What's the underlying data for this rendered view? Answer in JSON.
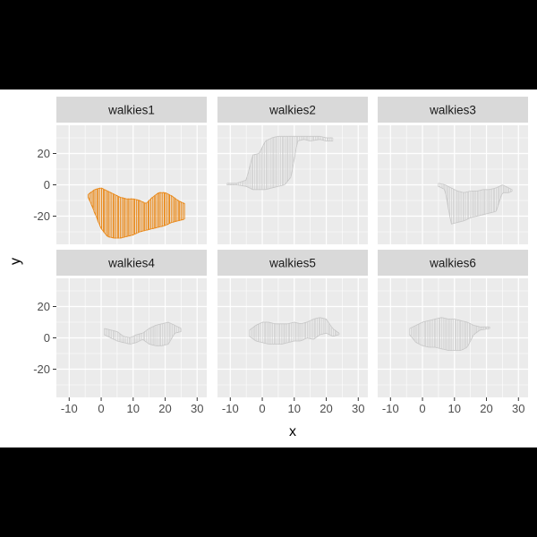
{
  "chart_data": {
    "type": "line",
    "xlabel": "x",
    "ylabel": "y",
    "xlim": [
      -14,
      33
    ],
    "ylim": [
      -38,
      38
    ],
    "x_breaks": [
      -10,
      0,
      10,
      20,
      30
    ],
    "y_breaks": [
      -20,
      0,
      20
    ],
    "grid": true,
    "highlight_color": "#E98B1E",
    "muted_color": "#C8C8C8",
    "panel_background": "#EBEBEB",
    "strip_background": "#D9D9D9",
    "panels": [
      {
        "name": "walkies1",
        "highlighted": true,
        "band": {
          "x": [
            -4,
            -2,
            0,
            2,
            4,
            6,
            8,
            10,
            12,
            14,
            16,
            18,
            20,
            22,
            24,
            26
          ],
          "y_low": [
            -8,
            -18,
            -28,
            -33,
            -34,
            -34,
            -33,
            -32,
            -30,
            -29,
            -28,
            -27,
            -26,
            -24,
            -23,
            -22
          ],
          "y_high": [
            -6,
            -3,
            -2,
            -4,
            -6,
            -8,
            -9,
            -9,
            -10,
            -12,
            -8,
            -5,
            -5,
            -7,
            -10,
            -12
          ]
        }
      },
      {
        "name": "walkies2",
        "highlighted": false,
        "band": {
          "x": [
            -11,
            -8,
            -5,
            -3,
            -1,
            1,
            3,
            5,
            7,
            9,
            11,
            13,
            15,
            18,
            20,
            22
          ],
          "y_low": [
            0,
            0,
            -1,
            -3,
            -3,
            -3,
            -2,
            -1,
            0,
            5,
            28,
            29,
            28,
            29,
            28,
            28
          ],
          "y_high": [
            1,
            1,
            3,
            19,
            20,
            28,
            30,
            31,
            31,
            31,
            31,
            31,
            31,
            31,
            30,
            30
          ]
        }
      },
      {
        "name": "walkies3",
        "highlighted": false,
        "band": {
          "x": [
            5,
            7,
            9,
            11,
            13,
            15,
            17,
            19,
            21,
            23,
            25,
            27,
            28
          ],
          "y_low": [
            -1,
            -3,
            -25,
            -24,
            -23,
            -21,
            -20,
            -19,
            -18,
            -17,
            -5,
            -5,
            -4
          ],
          "y_high": [
            1,
            0,
            -2,
            -4,
            -5,
            -4,
            -4,
            -3,
            -3,
            -2,
            0,
            -2,
            -3
          ]
        }
      },
      {
        "name": "walkies4",
        "highlighted": false,
        "band": {
          "x": [
            1,
            3,
            5,
            7,
            9,
            11,
            13,
            15,
            17,
            19,
            21,
            23,
            25
          ],
          "y_low": [
            2,
            0,
            -2,
            -3,
            -4,
            -3,
            -1,
            -4,
            -5,
            -5,
            -4,
            3,
            4
          ],
          "y_high": [
            6,
            5,
            4,
            1,
            0,
            2,
            3,
            6,
            8,
            9,
            10,
            8,
            6
          ]
        }
      },
      {
        "name": "walkies5",
        "highlighted": false,
        "band": {
          "x": [
            -4,
            -2,
            0,
            2,
            4,
            6,
            8,
            10,
            12,
            14,
            16,
            18,
            20,
            22,
            24
          ],
          "y_low": [
            1,
            -2,
            -3,
            -4,
            -4,
            -4,
            -3,
            -2,
            -2,
            0,
            -1,
            2,
            3,
            1,
            2
          ],
          "y_high": [
            5,
            8,
            10,
            10,
            9,
            9,
            9,
            10,
            9,
            10,
            12,
            13,
            12,
            6,
            3
          ]
        }
      },
      {
        "name": "walkies6",
        "highlighted": false,
        "band": {
          "x": [
            -4,
            -2,
            0,
            2,
            4,
            6,
            8,
            10,
            12,
            14,
            16,
            18,
            21
          ],
          "y_low": [
            2,
            -3,
            -5,
            -6,
            -6,
            -7,
            -8,
            -8,
            -8,
            -6,
            2,
            5,
            6
          ],
          "y_high": [
            6,
            8,
            10,
            11,
            12,
            13,
            12,
            12,
            11,
            10,
            8,
            7,
            7
          ]
        }
      }
    ]
  }
}
